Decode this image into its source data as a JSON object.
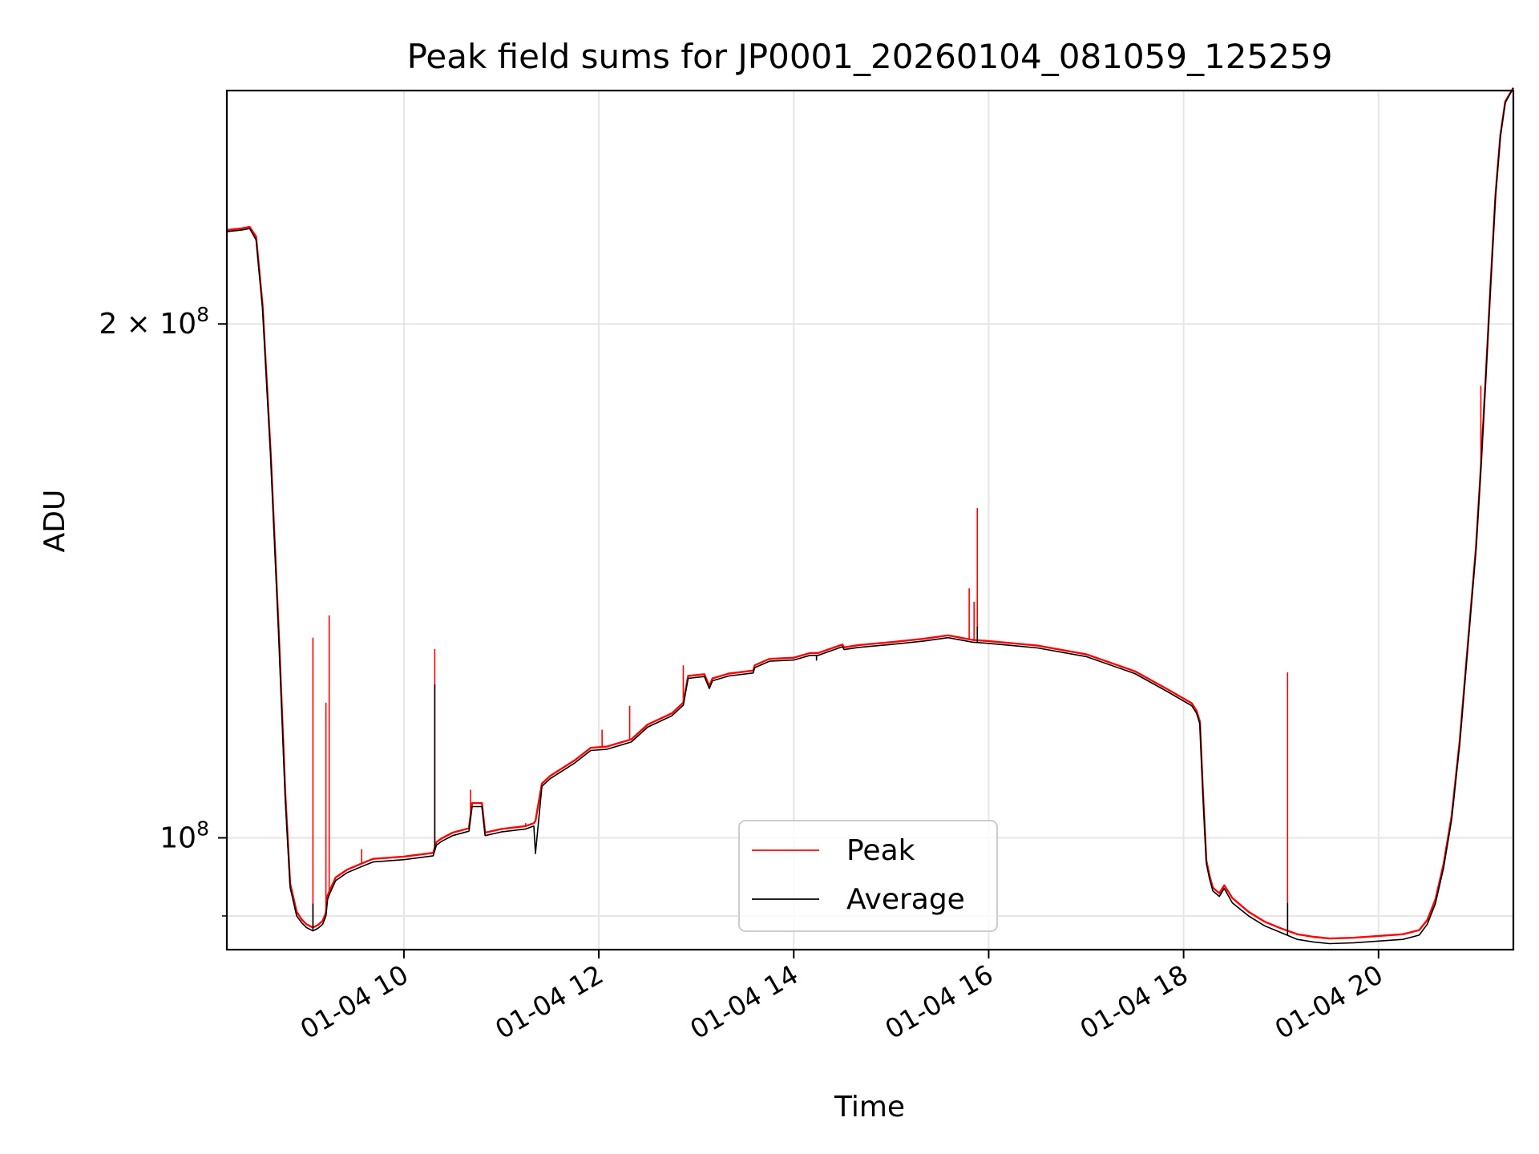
{
  "chart_data": {
    "type": "line",
    "title": "Peak field sums for JP0001_20260104_081059_125259",
    "xlabel": "Time",
    "ylabel": "ADU",
    "yscale": "log",
    "xlim": [
      "2026-01-04 08:11",
      "2026-01-04 21:23"
    ],
    "ylim": [
      86000000,
      274000000
    ],
    "x_ticks": [
      {
        "value": "2026-01-04 10:00",
        "label": "01-04 10"
      },
      {
        "value": "2026-01-04 12:00",
        "label": "01-04 12"
      },
      {
        "value": "2026-01-04 14:00",
        "label": "01-04 14"
      },
      {
        "value": "2026-01-04 16:00",
        "label": "01-04 16"
      },
      {
        "value": "2026-01-04 18:00",
        "label": "01-04 18"
      },
      {
        "value": "2026-01-04 20:00",
        "label": "01-04 20"
      }
    ],
    "y_major_ticks": [
      {
        "value": 100000000,
        "label": "10",
        "exp": "8"
      },
      {
        "value": 200000000,
        "label": "2 × 10",
        "exp": "8"
      }
    ],
    "y_minor_ticks": [
      90000000
    ],
    "grid": true,
    "legend_position": "lower center",
    "series": [
      {
        "name": "Peak",
        "color": "#ff0000",
        "x": [
          "2026-01-04 08:11",
          "2026-01-04 08:20",
          "2026-01-04 08:25",
          "2026-01-04 08:29",
          "2026-01-04 08:33",
          "2026-01-04 08:38",
          "2026-01-04 08:43",
          "2026-01-04 08:47",
          "2026-01-04 08:50",
          "2026-01-04 08:54",
          "2026-01-04 08:57",
          "2026-01-04 09:00",
          "2026-01-04 09:04",
          "2026-01-04 09:07",
          "2026-01-04 09:10",
          "2026-01-04 09:12",
          "2026-01-04 09:13",
          "2026-01-04 09:14",
          "2026-01-04 09:18",
          "2026-01-04 09:25",
          "2026-01-04 09:34",
          "2026-01-04 09:41",
          "2026-01-04 10:00",
          "2026-01-04 10:18",
          "2026-01-04 10:20",
          "2026-01-04 10:23",
          "2026-01-04 10:30",
          "2026-01-04 10:40",
          "2026-01-04 10:42",
          "2026-01-04 10:48",
          "2026-01-04 10:50",
          "2026-01-04 11:00",
          "2026-01-04 11:15",
          "2026-01-04 11:20",
          "2026-01-04 11:21",
          "2026-01-04 11:25",
          "2026-01-04 11:30",
          "2026-01-04 11:45",
          "2026-01-04 11:55",
          "2026-01-04 12:05",
          "2026-01-04 12:20",
          "2026-01-04 12:30",
          "2026-01-04 12:45",
          "2026-01-04 12:52",
          "2026-01-04 12:55",
          "2026-01-04 13:05",
          "2026-01-04 13:08",
          "2026-01-04 13:10",
          "2026-01-04 13:20",
          "2026-01-04 13:35",
          "2026-01-04 13:36",
          "2026-01-04 13:45",
          "2026-01-04 14:00",
          "2026-01-04 14:10",
          "2026-01-04 14:15",
          "2026-01-04 14:30",
          "2026-01-04 14:31",
          "2026-01-04 14:40",
          "2026-01-04 15:00",
          "2026-01-04 15:20",
          "2026-01-04 15:35",
          "2026-01-04 15:50",
          "2026-01-04 16:00",
          "2026-01-04 16:30",
          "2026-01-04 17:00",
          "2026-01-04 17:30",
          "2026-01-04 17:50",
          "2026-01-04 18:05",
          "2026-01-04 18:08",
          "2026-01-04 18:10",
          "2026-01-04 18:12",
          "2026-01-04 18:14",
          "2026-01-04 18:16",
          "2026-01-04 18:18",
          "2026-01-04 18:22",
          "2026-01-04 18:25",
          "2026-01-04 18:30",
          "2026-01-04 18:40",
          "2026-01-04 18:50",
          "2026-01-04 19:00",
          "2026-01-04 19:10",
          "2026-01-04 19:20",
          "2026-01-04 19:30",
          "2026-01-04 19:45",
          "2026-01-04 20:00",
          "2026-01-04 20:15",
          "2026-01-04 20:25",
          "2026-01-04 20:30",
          "2026-01-04 20:35",
          "2026-01-04 20:40",
          "2026-01-04 20:45",
          "2026-01-04 20:50",
          "2026-01-04 20:55",
          "2026-01-04 21:00",
          "2026-01-04 21:03",
          "2026-01-04 21:06",
          "2026-01-04 21:09",
          "2026-01-04 21:12",
          "2026-01-04 21:15",
          "2026-01-04 21:18",
          "2026-01-04 21:23"
        ],
        "y": [
          227000000,
          227500000,
          228000000,
          225000000,
          205000000,
          168000000,
          132000000,
          106000000,
          94000000,
          90500000,
          89600000,
          89000000,
          88600000,
          88900000,
          89400000,
          90400000,
          92500000,
          93000000,
          94800000,
          95800000,
          96600000,
          97200000,
          97500000,
          98000000,
          99400000,
          99900000,
          100700000,
          101300000,
          104800000,
          104800000,
          100700000,
          101200000,
          101600000,
          102000000,
          102300000,
          107600000,
          108700000,
          111000000,
          112900000,
          113100000,
          114200000,
          116500000,
          118300000,
          120000000,
          124400000,
          124700000,
          122700000,
          124000000,
          124800000,
          125300000,
          126200000,
          127300000,
          127500000,
          128300000,
          128300000,
          129800000,
          129300000,
          129700000,
          130200000,
          130800000,
          131400000,
          130600000,
          130400000,
          129600000,
          128100000,
          125200000,
          122200000,
          119900000,
          118700000,
          117000000,
          106000000,
          97000000,
          95000000,
          93500000,
          92800000,
          93800000,
          92200000,
          90500000,
          89300000,
          88500000,
          87800000,
          87500000,
          87300000,
          87400000,
          87600000,
          87800000,
          88300000,
          89500000,
          92000000,
          96500000,
          103000000,
          114000000,
          130000000,
          148000000,
          165000000,
          186000000,
          211000000,
          238000000,
          258000000,
          270000000,
          275000000
        ]
      },
      {
        "name": "Average",
        "color": "#000000",
        "x": [
          "2026-01-04 08:11",
          "2026-01-04 08:20",
          "2026-01-04 08:25",
          "2026-01-04 08:29",
          "2026-01-04 08:33",
          "2026-01-04 08:38",
          "2026-01-04 08:43",
          "2026-01-04 08:47",
          "2026-01-04 08:50",
          "2026-01-04 08:54",
          "2026-01-04 08:57",
          "2026-01-04 09:00",
          "2026-01-04 09:04",
          "2026-01-04 09:07",
          "2026-01-04 09:10",
          "2026-01-04 09:12",
          "2026-01-04 09:13",
          "2026-01-04 09:14",
          "2026-01-04 09:18",
          "2026-01-04 09:25",
          "2026-01-04 09:34",
          "2026-01-04 09:41",
          "2026-01-04 10:00",
          "2026-01-04 10:18",
          "2026-01-04 10:20",
          "2026-01-04 10:23",
          "2026-01-04 10:30",
          "2026-01-04 10:40",
          "2026-01-04 10:42",
          "2026-01-04 10:48",
          "2026-01-04 10:50",
          "2026-01-04 11:00",
          "2026-01-04 11:15",
          "2026-01-04 11:20",
          "2026-01-04 11:21",
          "2026-01-04 11:25",
          "2026-01-04 11:30",
          "2026-01-04 11:45",
          "2026-01-04 11:55",
          "2026-01-04 12:05",
          "2026-01-04 12:20",
          "2026-01-04 12:30",
          "2026-01-04 12:45",
          "2026-01-04 12:52",
          "2026-01-04 12:55",
          "2026-01-04 13:05",
          "2026-01-04 13:08",
          "2026-01-04 13:10",
          "2026-01-04 13:20",
          "2026-01-04 13:35",
          "2026-01-04 13:36",
          "2026-01-04 13:45",
          "2026-01-04 14:00",
          "2026-01-04 14:10",
          "2026-01-04 14:15",
          "2026-01-04 14:30",
          "2026-01-04 14:31",
          "2026-01-04 14:40",
          "2026-01-04 15:00",
          "2026-01-04 15:20",
          "2026-01-04 15:35",
          "2026-01-04 15:50",
          "2026-01-04 16:00",
          "2026-01-04 16:30",
          "2026-01-04 17:00",
          "2026-01-04 17:30",
          "2026-01-04 17:50",
          "2026-01-04 18:05",
          "2026-01-04 18:08",
          "2026-01-04 18:10",
          "2026-01-04 18:12",
          "2026-01-04 18:14",
          "2026-01-04 18:16",
          "2026-01-04 18:18",
          "2026-01-04 18:22",
          "2026-01-04 18:25",
          "2026-01-04 18:30",
          "2026-01-04 18:40",
          "2026-01-04 18:50",
          "2026-01-04 19:00",
          "2026-01-04 19:10",
          "2026-01-04 19:20",
          "2026-01-04 19:30",
          "2026-01-04 19:45",
          "2026-01-04 20:00",
          "2026-01-04 20:15",
          "2026-01-04 20:25",
          "2026-01-04 20:30",
          "2026-01-04 20:35",
          "2026-01-04 20:40",
          "2026-01-04 20:45",
          "2026-01-04 20:50",
          "2026-01-04 20:55",
          "2026-01-04 21:00",
          "2026-01-04 21:03",
          "2026-01-04 21:06",
          "2026-01-04 21:09",
          "2026-01-04 21:12",
          "2026-01-04 21:15",
          "2026-01-04 21:18",
          "2026-01-04 21:23"
        ],
        "y": [
          226500000,
          227000000,
          227500000,
          224000000,
          204000000,
          167000000,
          131000000,
          105000000,
          93500000,
          90000000,
          89200000,
          88600000,
          88200000,
          88500000,
          89000000,
          90000000,
          92000000,
          92600000,
          94400000,
          95400000,
          96200000,
          96800000,
          97100000,
          97600000,
          99000000,
          99500000,
          100300000,
          100900000,
          104300000,
          104300000,
          100300000,
          100800000,
          101200000,
          101600000,
          97900000,
          107200000,
          108300000,
          110600000,
          112500000,
          112700000,
          113800000,
          116100000,
          117900000,
          119600000,
          124000000,
          124300000,
          122300000,
          123600000,
          124400000,
          124900000,
          125800000,
          126900000,
          127100000,
          127900000,
          127900000,
          129400000,
          128900000,
          129300000,
          129800000,
          130400000,
          131000000,
          130200000,
          130000000,
          129200000,
          127700000,
          124800000,
          121800000,
          119500000,
          118300000,
          116600000,
          105600000,
          96600000,
          94600000,
          93100000,
          92400000,
          93400000,
          91600000,
          90000000,
          88800000,
          88000000,
          87200000,
          86900000,
          86700000,
          86800000,
          87000000,
          87200000,
          87700000,
          89000000,
          91500000,
          96000000,
          102500000,
          113500000,
          129500000,
          147500000,
          164500000,
          185500000,
          210500000,
          237500000,
          257500000,
          269500000,
          275000000
        ]
      }
    ],
    "peak_spikes": [
      {
        "x": "2026-01-04 08:47",
        "y": 106000000
      },
      {
        "x": "2026-01-04 09:04",
        "y": 131000000
      },
      {
        "x": "2026-01-04 09:12",
        "y": 120000000
      },
      {
        "x": "2026-01-04 09:14",
        "y": 135000000
      },
      {
        "x": "2026-01-04 09:34",
        "y": 98500000
      },
      {
        "x": "2026-01-04 10:19",
        "y": 129000000
      },
      {
        "x": "2026-01-04 10:41",
        "y": 106700000
      },
      {
        "x": "2026-01-04 11:15",
        "y": 102000000
      },
      {
        "x": "2026-01-04 12:02",
        "y": 115700000
      },
      {
        "x": "2026-01-04 12:19",
        "y": 119500000
      },
      {
        "x": "2026-01-04 12:52",
        "y": 126200000
      },
      {
        "x": "2026-01-04 14:14",
        "y": 128500000
      },
      {
        "x": "2026-01-04 15:42",
        "y": 131200000
      },
      {
        "x": "2026-01-04 15:48",
        "y": 140000000
      },
      {
        "x": "2026-01-04 15:51",
        "y": 137500000
      },
      {
        "x": "2026-01-04 15:53",
        "y": 156000000
      },
      {
        "x": "2026-01-04 19:04",
        "y": 125000000
      },
      {
        "x": "2026-01-04 21:03",
        "y": 184000000
      }
    ],
    "average_spikes": [
      {
        "x": "2026-01-04 09:04",
        "y": 91500000
      },
      {
        "x": "2026-01-04 10:19",
        "y": 123000000
      },
      {
        "x": "2026-01-04 14:14",
        "y": 127000000
      },
      {
        "x": "2026-01-04 15:53",
        "y": 133000000
      },
      {
        "x": "2026-01-04 19:04",
        "y": 91600000
      }
    ],
    "legend": [
      {
        "label": "Peak",
        "color": "#ff0000"
      },
      {
        "label": "Average",
        "color": "#000000"
      }
    ]
  }
}
